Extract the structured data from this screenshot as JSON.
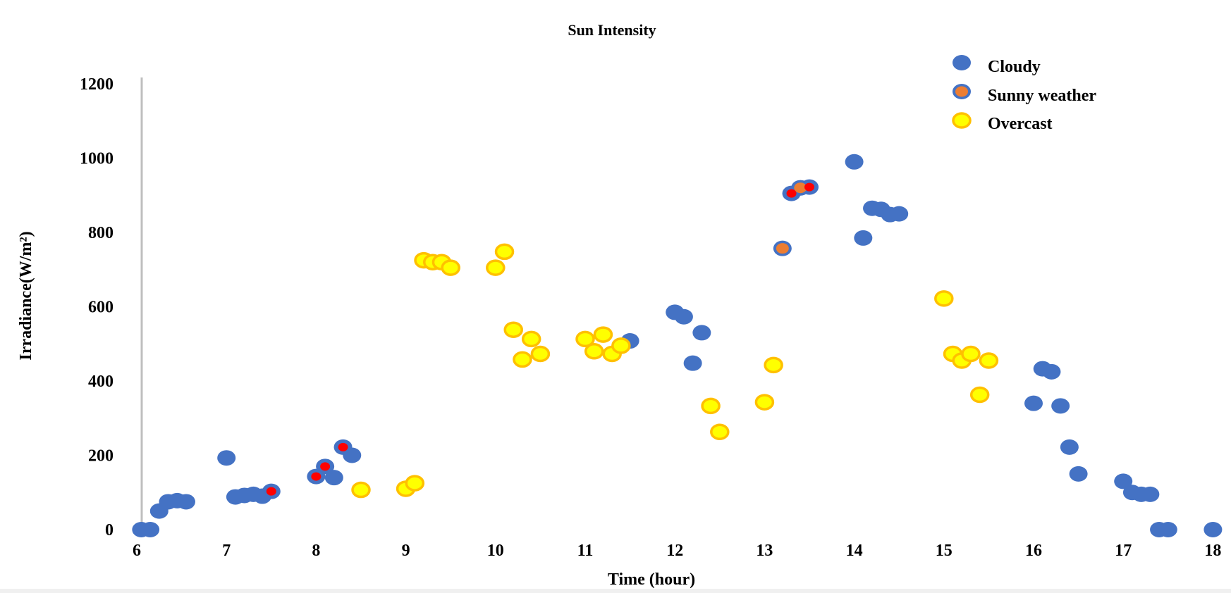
{
  "chart_data": {
    "type": "scatter",
    "title": "Sun Intensity",
    "xlabel": "Time (hour)",
    "ylabel": "Irradiance(W/m²)",
    "xlim": [
      6,
      18
    ],
    "ylim": [
      0,
      1200
    ],
    "x_ticks": [
      "6",
      "7",
      "8",
      "9",
      "10",
      "11",
      "12",
      "13",
      "14",
      "15",
      "16",
      "17",
      "18"
    ],
    "y_ticks": [
      "0",
      "200",
      "400",
      "600",
      "800",
      "1000",
      "1200"
    ],
    "grid": false,
    "legend_position": "top-right",
    "colors": {
      "cloudy": "#4472C4",
      "sunny_inner": "#ED7D31",
      "overcast_fill": "#FFFF00",
      "overcast_edge": "#FFC000",
      "highlight": "#FF0000",
      "axis": "#BFBFBF"
    },
    "series": [
      {
        "name": "Cloudy",
        "marker": "filled-circle",
        "points": [
          [
            6.05,
            0
          ],
          [
            6.15,
            0
          ],
          [
            6.25,
            50
          ],
          [
            6.35,
            75
          ],
          [
            6.45,
            78
          ],
          [
            6.55,
            75
          ],
          [
            7.0,
            193
          ],
          [
            7.1,
            88
          ],
          [
            7.2,
            92
          ],
          [
            7.3,
            95
          ],
          [
            7.4,
            90
          ],
          [
            7.5,
            103
          ],
          [
            8.0,
            143
          ],
          [
            8.1,
            170
          ],
          [
            8.2,
            140
          ],
          [
            8.3,
            222
          ],
          [
            8.4,
            200
          ],
          [
            11.5,
            508
          ],
          [
            12.0,
            585
          ],
          [
            12.1,
            573
          ],
          [
            12.2,
            448
          ],
          [
            12.3,
            530
          ],
          [
            13.3,
            905
          ],
          [
            13.4,
            920
          ],
          [
            13.5,
            922
          ],
          [
            14.0,
            990
          ],
          [
            14.1,
            785
          ],
          [
            14.2,
            865
          ],
          [
            14.3,
            862
          ],
          [
            14.4,
            848
          ],
          [
            14.5,
            850
          ],
          [
            16.0,
            340
          ],
          [
            16.1,
            433
          ],
          [
            16.2,
            425
          ],
          [
            16.3,
            333
          ],
          [
            16.4,
            222
          ],
          [
            16.5,
            150
          ],
          [
            17.0,
            130
          ],
          [
            17.1,
            100
          ],
          [
            17.2,
            95
          ],
          [
            17.3,
            95
          ],
          [
            17.4,
            0
          ],
          [
            17.5,
            0
          ],
          [
            18.0,
            0
          ]
        ]
      },
      {
        "name": "Sunny weather",
        "marker": "blue-ring-orange-center",
        "points": [
          [
            13.2,
            757
          ],
          [
            13.4,
            920
          ]
        ]
      },
      {
        "name": "Overcast",
        "marker": "yellow-circle",
        "points": [
          [
            8.5,
            107
          ],
          [
            9.0,
            110
          ],
          [
            9.1,
            125
          ],
          [
            9.2,
            725
          ],
          [
            9.3,
            720
          ],
          [
            9.4,
            720
          ],
          [
            9.5,
            705
          ],
          [
            10.0,
            705
          ],
          [
            10.1,
            748
          ],
          [
            10.2,
            538
          ],
          [
            10.3,
            458
          ],
          [
            10.4,
            513
          ],
          [
            10.5,
            473
          ],
          [
            11.0,
            513
          ],
          [
            11.1,
            480
          ],
          [
            11.2,
            525
          ],
          [
            11.3,
            473
          ],
          [
            11.4,
            495
          ],
          [
            12.4,
            333
          ],
          [
            12.5,
            263
          ],
          [
            13.0,
            343
          ],
          [
            13.1,
            443
          ],
          [
            15.0,
            622
          ],
          [
            15.1,
            473
          ],
          [
            15.2,
            455
          ],
          [
            15.3,
            473
          ],
          [
            15.4,
            363
          ],
          [
            15.5,
            455
          ]
        ]
      }
    ],
    "highlighted_points": [
      [
        7.5,
        103
      ],
      [
        8.0,
        143
      ],
      [
        8.1,
        170
      ],
      [
        8.3,
        222
      ],
      [
        13.3,
        905
      ],
      [
        13.5,
        922
      ]
    ]
  }
}
